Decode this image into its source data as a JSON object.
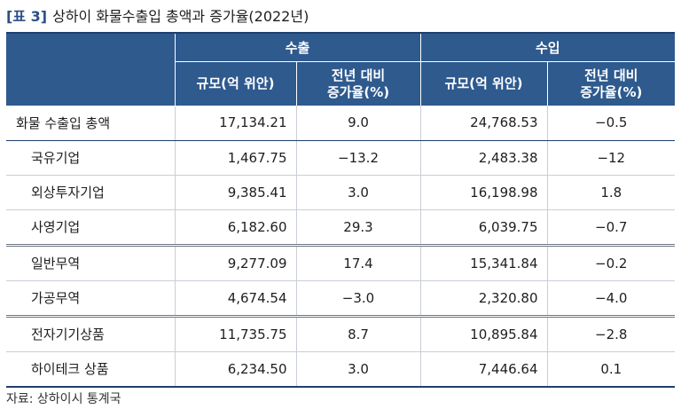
{
  "caption": {
    "tag": "[표 3]",
    "title": "상하이 화물수출입 총액과 증가율(2022년)"
  },
  "header": {
    "export_label": "수출",
    "import_label": "수입",
    "export_scale": "규모(억 위안)",
    "export_growth_l1": "전년 대비",
    "export_growth_l2": "증가율(%)",
    "import_scale": "규모(억 위안)",
    "import_growth_l1": "전년 대비",
    "import_growth_l2": "증가율(%)"
  },
  "rows": [
    {
      "label": "화물 수출입 총액",
      "export_scale": "17,134.21",
      "export_growth": "9.0",
      "import_scale": "24,768.53",
      "import_growth": "−0.5"
    },
    {
      "label": "국유기업",
      "export_scale": "1,467.75",
      "export_growth": "−13.2",
      "import_scale": "2,483.38",
      "import_growth": "−12"
    },
    {
      "label": "외상투자기업",
      "export_scale": "9,385.41",
      "export_growth": "3.0",
      "import_scale": "16,198.98",
      "import_growth": "1.8"
    },
    {
      "label": "사영기업",
      "export_scale": "6,182.60",
      "export_growth": "29.3",
      "import_scale": "6,039.75",
      "import_growth": "−0.7"
    },
    {
      "label": "일반무역",
      "export_scale": "9,277.09",
      "export_growth": "17.4",
      "import_scale": "15,341.84",
      "import_growth": "−0.2"
    },
    {
      "label": "가공무역",
      "export_scale": "4,674.54",
      "export_growth": "−3.0",
      "import_scale": "2,320.80",
      "import_growth": "−4.0"
    },
    {
      "label": "전자기기상품",
      "export_scale": "11,735.75",
      "export_growth": "8.7",
      "import_scale": "10,895.84",
      "import_growth": "−2.8"
    },
    {
      "label": "하이테크 상품",
      "export_scale": "6,234.50",
      "export_growth": "3.0",
      "import_scale": "7,446.64",
      "import_growth": "0.1"
    }
  ],
  "source": "자료: 상하이시 통계국",
  "colors": {
    "header_bg": "#2e5a8e",
    "caption_tag": "#2a4f86",
    "rule": "#1f3f6e"
  }
}
